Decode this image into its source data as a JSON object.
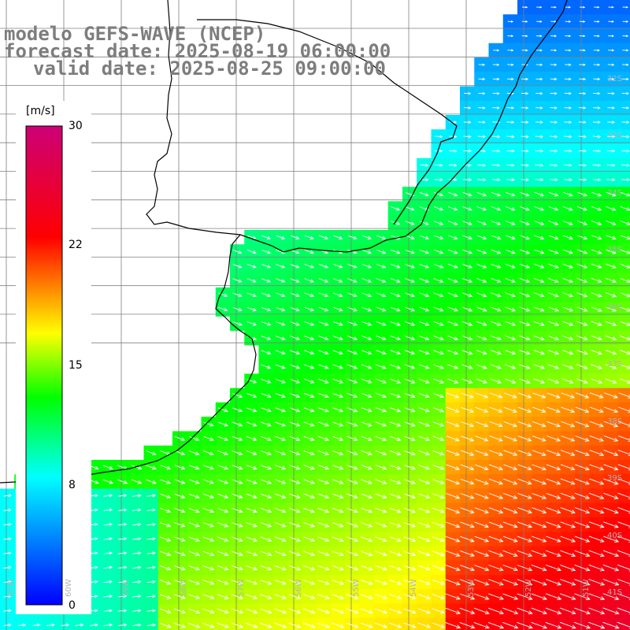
{
  "titles": {
    "model": "modelo GEFS-WAVE (NCEP)",
    "forecast": "forecast date: 2025-08-19 06:00:00",
    "valid": "valid date: 2025-08-25 09:00:00"
  },
  "colorbar": {
    "unit": "[m/s]",
    "min": 0,
    "max": 30,
    "ticks": [
      "30",
      "22",
      "15",
      "8",
      "0"
    ],
    "tick_values": [
      30,
      22,
      15,
      8,
      0
    ],
    "colors": [
      "#0000ff",
      "#00ffff",
      "#00ff00",
      "#ffff00",
      "#ff8000",
      "#ff0000",
      "#cc0077"
    ]
  },
  "lat_labels": [
    "32S",
    "33S",
    "34S",
    "35S",
    "36S",
    "37S",
    "38S",
    "39S",
    "40S",
    "41S"
  ],
  "lon_labels": [
    "61W",
    "60W",
    "59W",
    "58W",
    "57W",
    "56W",
    "55W",
    "54W",
    "53W",
    "52W",
    "51W"
  ],
  "colors": {
    "land": "#ffffff",
    "coast": "#000000",
    "grid": "#808080",
    "title": "#7d7d7d"
  }
}
